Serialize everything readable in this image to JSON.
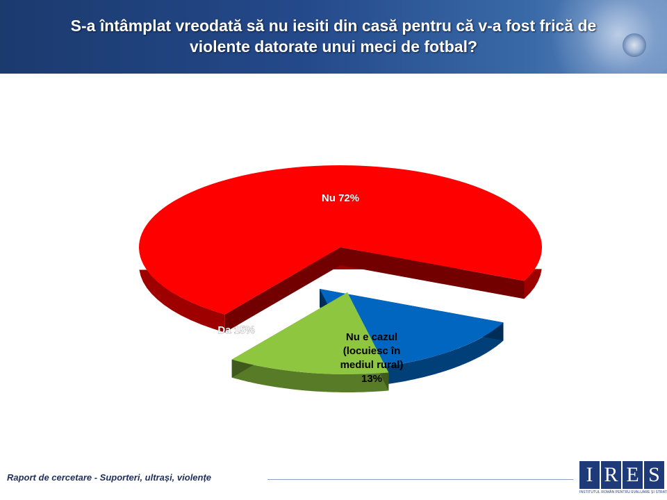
{
  "header": {
    "title_line1": "S-a întâmplat vreodată să nu iesiti din casă pentru că v-a fost frică de",
    "title_line2": "violente datorate unui meci de fotbal?"
  },
  "chart_data": {
    "type": "pie",
    "slices": [
      {
        "name": "Nu",
        "value": 72,
        "color": "#ff0000",
        "label_lines": [
          "Nu 72%"
        ]
      },
      {
        "name": "Da",
        "value": 15,
        "color": "#0066c0",
        "label_lines": [
          "Da 15%"
        ]
      },
      {
        "name": "Nu e cazul (locuiesc în mediul rural)",
        "value": 13,
        "color": "#8ec63f",
        "label_lines": [
          "Nu e cazul",
          "(locuiesc în",
          "mediul rural)",
          "13%"
        ]
      }
    ],
    "style": "3d-exploded",
    "legend": "none"
  },
  "footer": {
    "report_title": "Raport de cercetare - Suporteri, ultrași, violențe",
    "logo_letters": [
      "I",
      "R",
      "E",
      "S"
    ],
    "logo_subtitle": "INSTITUTUL ROMÂN PENTRU EVALUARE ȘI STRATEGIE"
  }
}
